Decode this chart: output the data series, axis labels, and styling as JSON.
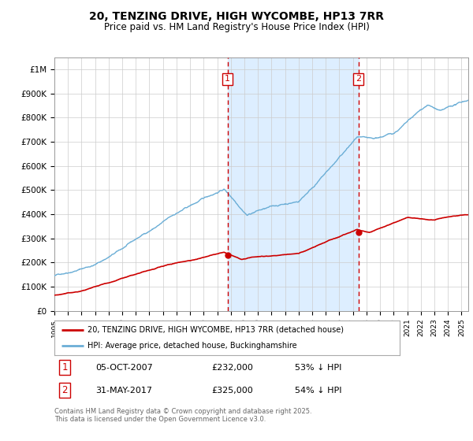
{
  "title": "20, TENZING DRIVE, HIGH WYCOMBE, HP13 7RR",
  "subtitle": "Price paid vs. HM Land Registry's House Price Index (HPI)",
  "legend_line1": "20, TENZING DRIVE, HIGH WYCOMBE, HP13 7RR (detached house)",
  "legend_line2": "HPI: Average price, detached house, Buckinghamshire",
  "footnote": "Contains HM Land Registry data © Crown copyright and database right 2025.\nThis data is licensed under the Open Government Licence v3.0.",
  "marker1_date": "05-OCT-2007",
  "marker1_price": 232000,
  "marker1_label": "53% ↓ HPI",
  "marker1_x": 2007.76,
  "marker2_date": "31-MAY-2017",
  "marker2_price": 325000,
  "marker2_label": "54% ↓ HPI",
  "marker2_x": 2017.41,
  "hpi_color": "#6baed6",
  "price_color": "#cc0000",
  "marker_color": "#cc0000",
  "vline_color": "#cc0000",
  "shade_color": "#ddeeff",
  "ylim": [
    0,
    1050000
  ],
  "xlim": [
    1995,
    2025.5
  ],
  "yticks": [
    0,
    100000,
    200000,
    300000,
    400000,
    500000,
    600000,
    700000,
    800000,
    900000,
    1000000
  ],
  "ylabels": [
    "£0",
    "£100K",
    "£200K",
    "£300K",
    "£400K",
    "£500K",
    "£600K",
    "£700K",
    "£800K",
    "£900K",
    "£1M"
  ]
}
